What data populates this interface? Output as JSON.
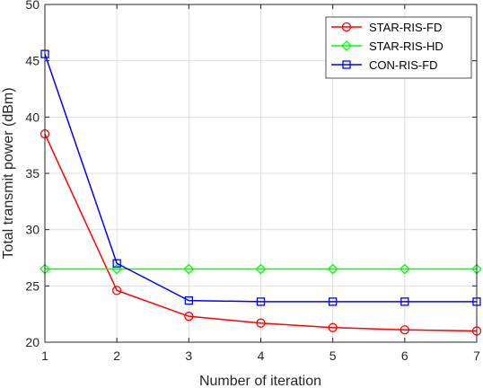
{
  "chart_data": {
    "type": "line",
    "title": "",
    "xlabel": "Number of iteration",
    "ylabel": "Total transmit power (dBm)",
    "xlim": [
      1,
      7
    ],
    "ylim": [
      20,
      50
    ],
    "xticks": [
      1,
      2,
      3,
      4,
      5,
      6,
      7
    ],
    "yticks": [
      20,
      25,
      30,
      35,
      40,
      45,
      50
    ],
    "x": [
      1,
      2,
      3,
      4,
      5,
      6,
      7
    ],
    "grid": true,
    "legend_position": "top-right",
    "series": [
      {
        "name": "STAR-RIS-FD",
        "values": [
          38.5,
          24.6,
          22.3,
          21.7,
          21.3,
          21.1,
          21.0
        ],
        "color": "#ff0000",
        "marker": "circle"
      },
      {
        "name": "STAR-RIS-HD",
        "values": [
          26.5,
          26.5,
          26.5,
          26.5,
          26.5,
          26.5,
          26.5
        ],
        "color": "#00ff00",
        "marker": "diamond"
      },
      {
        "name": "CON-RIS-FD",
        "values": [
          45.6,
          27.0,
          23.7,
          23.6,
          23.6,
          23.6,
          23.6
        ],
        "color": "#0000ff",
        "marker": "square"
      }
    ]
  }
}
